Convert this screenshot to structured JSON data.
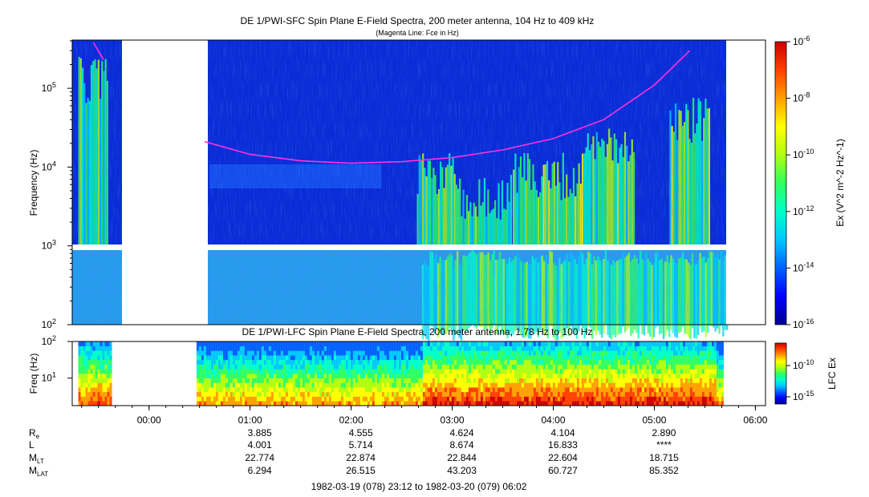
{
  "colors": {
    "background_blue": "#0a2bd6",
    "fce_line": "#ff33dd",
    "frame": "#000000",
    "gap": "#ffffff"
  },
  "colormap": [
    "#00008f",
    "#0000ff",
    "#0060ff",
    "#00c8ff",
    "#00ffc8",
    "#30ff60",
    "#b0ff10",
    "#ffff00",
    "#ffa000",
    "#ff4000",
    "#cc0000"
  ],
  "chart_data": [
    {
      "type": "heatmap",
      "title": "DE 1/PWI-SFC  Spin Plane E-Field Spectra, 200 meter antenna, 104 Hz to 409 kHz",
      "subtitle": "(Magenta Line: Fce in Hz)",
      "ylabel": "Frequency (Hz)",
      "yscale": "log",
      "ylim": [
        100,
        409000
      ],
      "yticks": [
        "10^2",
        "10^3",
        "10^4",
        "10^5"
      ],
      "xticks": [
        "00:00",
        "01:00",
        "02:00",
        "03:00",
        "04:00",
        "05:00",
        "06:00"
      ],
      "colorbar": {
        "label": "Ex (V^2 m^-2 Hz^-1)",
        "scale": "log",
        "range": [
          1e-16,
          1e-06
        ],
        "ticks": [
          "10^-16",
          "10^-14",
          "10^-12",
          "10^-10",
          "10^-8",
          "10^-6"
        ]
      },
      "data_gaps_hours": [
        [
          -0.38,
          0.47
        ]
      ],
      "fce_line_hz": {
        "time_h": [
          -0.55,
          -0.45,
          0.55,
          1.0,
          1.5,
          2.0,
          2.5,
          3.0,
          3.5,
          4.0,
          4.5,
          5.0,
          5.35
        ],
        "values": [
          380000,
          230000,
          21000,
          14500,
          12000,
          11200,
          11700,
          13200,
          16500,
          23000,
          40000,
          110000,
          300000
        ]
      }
    },
    {
      "type": "heatmap",
      "title": "DE 1/PWI-LFC  Spin Plane E-Field Spectra, 200 meter antenna, 1.78 Hz to 100 Hz",
      "ylabel": "Freq (Hz)",
      "yscale": "log",
      "ylim": [
        1.78,
        100
      ],
      "yticks": [
        "10^1",
        "10^2"
      ],
      "colorbar": {
        "label": "LFC Ex",
        "scale": "log",
        "ticks": [
          "10^-10",
          "10^-15"
        ]
      }
    }
  ],
  "ephemeris": {
    "rows": [
      {
        "label_main": "R",
        "label_sub": "e",
        "values": [
          "3.885",
          "4.555",
          "4.624",
          "4.104",
          "2.890"
        ]
      },
      {
        "label_main": "L",
        "label_sub": "",
        "values": [
          "4.001",
          "5.714",
          "8.674",
          "16.833",
          "****"
        ]
      },
      {
        "label_main": "M",
        "label_sub": "LT",
        "values": [
          "22.774",
          "22.874",
          "22.844",
          "22.604",
          "18.715"
        ]
      },
      {
        "label_main": "M",
        "label_sub": "LAT",
        "values": [
          "6.294",
          "26.515",
          "43.203",
          "60.727",
          "85.352"
        ]
      }
    ]
  },
  "footer": {
    "time_range": "1982-03-19 (078) 23:12 to 1982-03-20 (079) 06:02"
  }
}
